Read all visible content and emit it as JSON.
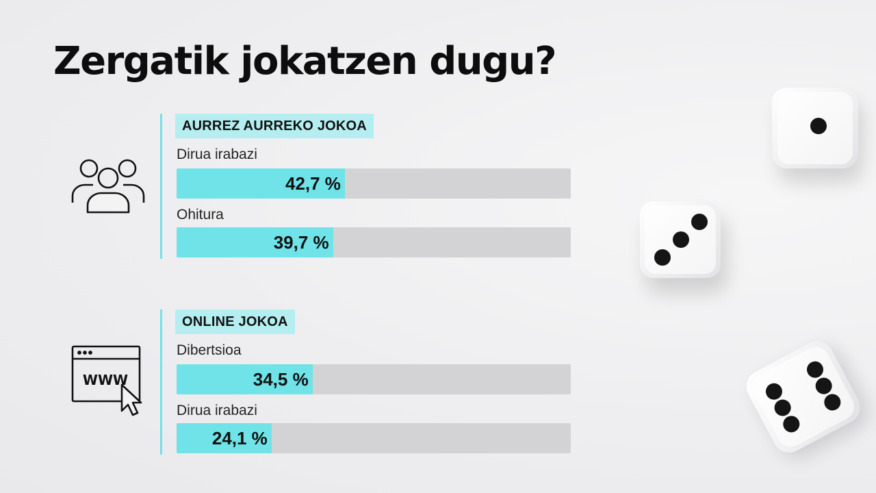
{
  "title": "Zergatik jokatzen dugu?",
  "chart_data": {
    "type": "bar",
    "unit": "%",
    "groups": [
      {
        "name": "AURREZ AURREKO JOKOA",
        "icon": "people-group-icon",
        "items": [
          {
            "label": "Dirua irabazi",
            "value": 42.7,
            "display": "42,7 %"
          },
          {
            "label": "Ohitura",
            "value": 39.7,
            "display": "39,7 %"
          }
        ]
      },
      {
        "name": "ONLINE JOKOA",
        "icon": "www-browser-cursor-icon",
        "items": [
          {
            "label": "Dibertsioa",
            "value": 34.5,
            "display": "34,5 %"
          },
          {
            "label": "Dirua irabazi",
            "value": 24.1,
            "display": "24,1 %"
          }
        ]
      }
    ],
    "xlim": [
      0,
      100
    ],
    "colors": {
      "bar_fill": "#6fe3e8",
      "bar_track": "#d3d3d5",
      "tag_bg": "#b5eef1",
      "accent_line": "#6fe3e8"
    }
  },
  "decor": {
    "image": "three-white-dice"
  }
}
